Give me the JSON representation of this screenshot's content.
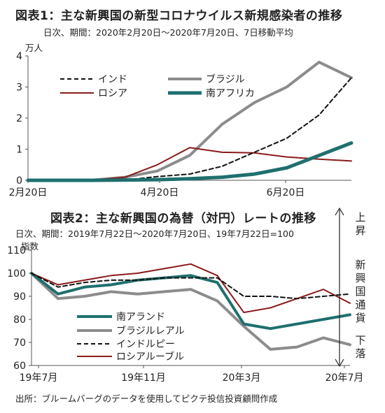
{
  "figure": {
    "chart1_title": "図表1：主な新興国の新型コロナウイルス新規感染者の推移",
    "chart1_subtitle": "日次、期間：2020年2月20日～2020年7月20日、7日移動平均",
    "chart1_unit": "万人",
    "chart2_title": "図表2：主な新興国の為替（対円）レートの推移",
    "chart2_subtitle": "日次、期間：2019年7月22日～2020年7月20日、19年7月22日=100",
    "chart2_unit": "指数",
    "side_up": "上昇",
    "side_middle": "新興国通貨",
    "side_down": "下落",
    "source": "出所：ブルームバーグのデータを使用してピクテ投信投資顧問作成"
  },
  "chart_data": [
    {
      "type": "line",
      "title": "図表1：主な新興国の新型コロナウイルス新規感染者の推移",
      "ylabel": "万人",
      "ylim": [
        0,
        4
      ],
      "yticks": [
        "0",
        "1",
        "2",
        "3",
        "4"
      ],
      "xticks": [
        "2月20日",
        "4月20日",
        "6月20日"
      ],
      "x": [
        "2/20",
        "3/5",
        "3/20",
        "4/5",
        "4/20",
        "5/5",
        "5/20",
        "6/5",
        "6/20",
        "7/5",
        "7/20"
      ],
      "series": [
        {
          "name": "インド",
          "color": "#111111",
          "dash": true,
          "values": [
            0,
            0,
            0,
            0.01,
            0.12,
            0.2,
            0.45,
            0.9,
            1.35,
            2.1,
            3.3
          ]
        },
        {
          "name": "ブラジル",
          "color": "#8c8c8c",
          "dash": false,
          "values": [
            0,
            0,
            0.01,
            0.1,
            0.3,
            0.8,
            1.8,
            2.5,
            3.0,
            3.8,
            3.3
          ]
        },
        {
          "name": "ロシア",
          "color": "#8b1a1a",
          "dash": false,
          "values": [
            0,
            0,
            0.01,
            0.1,
            0.5,
            1.05,
            0.9,
            0.88,
            0.75,
            0.68,
            0.62
          ]
        },
        {
          "name": "南アフリカ",
          "color": "#1f6f6f",
          "dash": false,
          "values": [
            0,
            0,
            0,
            0.01,
            0.02,
            0.05,
            0.1,
            0.2,
            0.4,
            0.8,
            1.2
          ]
        }
      ],
      "legend": "top"
    },
    {
      "type": "line",
      "title": "図表2：主な新興国の為替（対円）レートの推移",
      "ylabel": "指数",
      "ylim": [
        60,
        110
      ],
      "yticks": [
        "60",
        "70",
        "80",
        "90",
        "100",
        "110"
      ],
      "xticks": [
        "19年7月",
        "19年11月",
        "20年3月",
        "20年7月"
      ],
      "x": [
        "19/7",
        "19/8",
        "19/9",
        "19/10",
        "19/11",
        "19/12",
        "20/1",
        "20/2",
        "20/3",
        "20/4",
        "20/5",
        "20/6",
        "20/7"
      ],
      "series": [
        {
          "name": "南アランド",
          "color": "#1f6f6f",
          "dash": false,
          "values": [
            100,
            91,
            94,
            95,
            97,
            98,
            99,
            96,
            78,
            76,
            78,
            80,
            82
          ]
        },
        {
          "name": "ブラジルレアル",
          "color": "#8c8c8c",
          "dash": false,
          "values": [
            100,
            89,
            90,
            92,
            91,
            92,
            93,
            88,
            77,
            67,
            68,
            72,
            69
          ]
        },
        {
          "name": "インドルピー",
          "color": "#111111",
          "dash": true,
          "values": [
            100,
            94,
            96,
            97,
            97,
            98,
            98,
            98,
            90,
            90,
            89,
            90,
            91
          ]
        },
        {
          "name": "ロシアルーブル",
          "color": "#8b1a1a",
          "dash": false,
          "values": [
            100,
            95,
            97,
            99,
            100,
            102,
            104,
            99,
            83,
            85,
            89,
            93,
            87
          ]
        }
      ],
      "legend": "bottom-left"
    }
  ]
}
